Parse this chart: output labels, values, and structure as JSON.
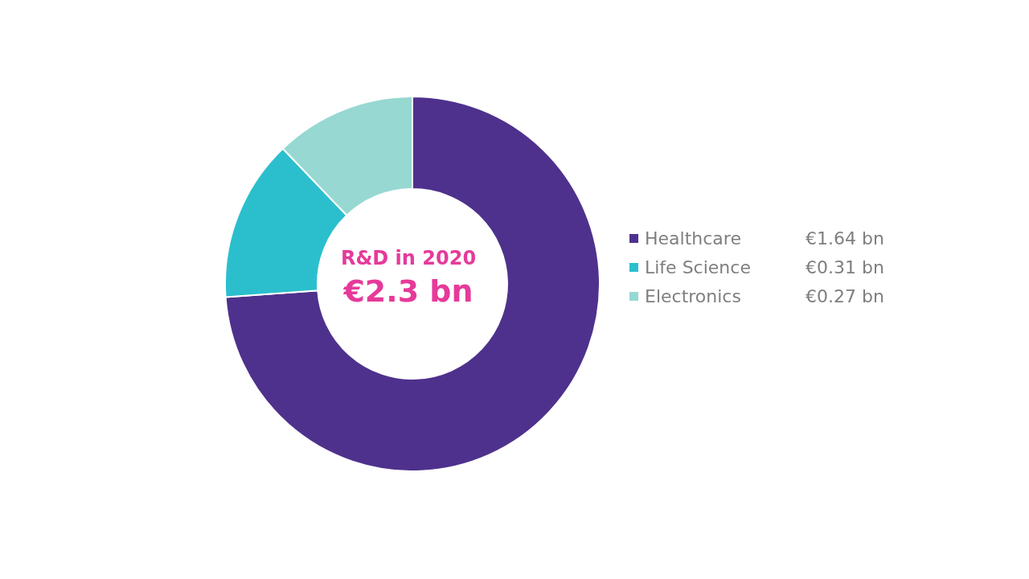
{
  "chart_data": {
    "type": "donut",
    "categories": [
      "Healthcare",
      "Life Science",
      "Electronics"
    ],
    "values": [
      1.64,
      0.31,
      0.27
    ],
    "value_labels": [
      "€1.64 bn",
      "€0.31 bn",
      "€0.27 bn"
    ],
    "colors": [
      "#4e318c",
      "#2bbfcd",
      "#97d8d2"
    ],
    "annotations": [
      "R&D in 2020",
      "€2.3 bn"
    ],
    "legend": "right"
  }
}
